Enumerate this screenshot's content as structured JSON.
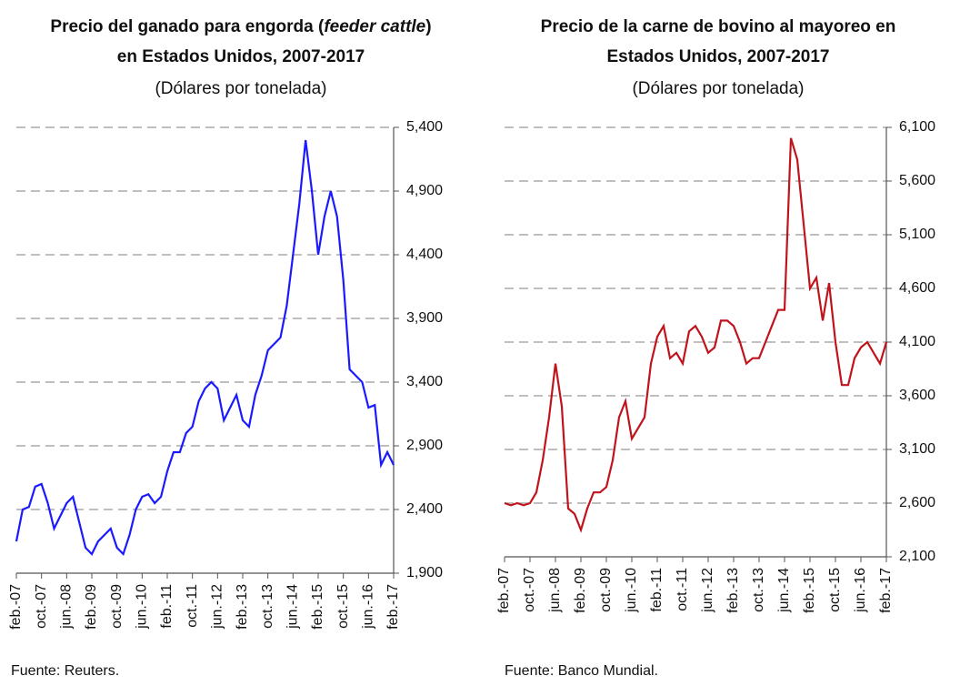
{
  "chart_data": [
    {
      "type": "line",
      "title": [
        [
          {
            "text": "Precio del ganado para engorda (",
            "italic": false
          },
          {
            "text": "feeder cattle",
            "italic": true
          },
          {
            "text": ")",
            "italic": false
          }
        ],
        [
          {
            "text": "en Estados Unidos, 2007-2017",
            "italic": false
          }
        ]
      ],
      "subtitle": "(Dólares por tonelada)",
      "source": "Fuente: Reuters.",
      "categories": [
        "feb.-07",
        null,
        null,
        null,
        "oct.-07",
        null,
        null,
        null,
        "jun.-08",
        null,
        null,
        null,
        "feb.-09",
        null,
        null,
        null,
        "oct.-09",
        null,
        null,
        null,
        "jun.-10",
        null,
        null,
        null,
        "feb.-11",
        null,
        null,
        null,
        "oct.-11",
        null,
        null,
        null,
        "jun.-12",
        null,
        null,
        null,
        "feb.-13",
        null,
        null,
        null,
        "oct.-13",
        null,
        null,
        null,
        "jun.-14",
        null,
        null,
        null,
        "feb.-15",
        null,
        null,
        null,
        "oct.-15",
        null,
        null,
        null,
        "jun.-16",
        null,
        null,
        null,
        "feb.-17"
      ],
      "values": [
        2150,
        2400,
        2420,
        2580,
        2600,
        2450,
        2250,
        2350,
        2450,
        2500,
        2300,
        2100,
        2050,
        2150,
        2200,
        2250,
        2100,
        2050,
        2200,
        2400,
        2500,
        2520,
        2450,
        2500,
        2700,
        2850,
        2850,
        3000,
        3050,
        3250,
        3350,
        3400,
        3350,
        3100,
        3200,
        3300,
        3100,
        3050,
        3300,
        3450,
        3650,
        3700,
        3750,
        4000,
        4400,
        4800,
        5300,
        4900,
        4400,
        4700,
        4900,
        4700,
        4200,
        3500,
        3450,
        3400,
        3200,
        3220,
        2750,
        2850,
        2750
      ],
      "color": "#1a1aff",
      "ylim": [
        1900,
        5400
      ],
      "yticks": [
        {
          "value": 1900,
          "label": "1,900"
        },
        {
          "value": 2400,
          "label": "2,400"
        },
        {
          "value": 2900,
          "label": "2,900"
        },
        {
          "value": 3400,
          "label": "3,400"
        },
        {
          "value": 3900,
          "label": "3,900"
        },
        {
          "value": 4400,
          "label": "4,400"
        },
        {
          "value": 4900,
          "label": "4,900"
        },
        {
          "value": 5400,
          "label": "5,400"
        }
      ],
      "grid": true
    },
    {
      "type": "line",
      "title": [
        [
          {
            "text": "Precio de la carne de bovino al mayoreo en",
            "italic": false
          }
        ],
        [
          {
            "text": "Estados Unidos, 2007-2017",
            "italic": false
          }
        ]
      ],
      "subtitle": "(Dólares por tonelada)",
      "source": "Fuente: Banco Mundial.",
      "categories": [
        "feb.-07",
        null,
        null,
        null,
        "oct.-07",
        null,
        null,
        null,
        "jun.-08",
        null,
        null,
        null,
        "feb.-09",
        null,
        null,
        null,
        "oct.-09",
        null,
        null,
        null,
        "jun.-10",
        null,
        null,
        null,
        "feb.-11",
        null,
        null,
        null,
        "oct.-11",
        null,
        null,
        null,
        "jun.-12",
        null,
        null,
        null,
        "feb.-13",
        null,
        null,
        null,
        "oct.-13",
        null,
        null,
        null,
        "jun.-14",
        null,
        null,
        null,
        "feb.-15",
        null,
        null,
        null,
        "oct.-15",
        null,
        null,
        null,
        "jun.-16",
        null,
        null,
        null,
        "feb.-17"
      ],
      "values": [
        2600,
        2580,
        2600,
        2580,
        2600,
        2700,
        3000,
        3400,
        3900,
        3500,
        2550,
        2500,
        2350,
        2550,
        2700,
        2700,
        2750,
        3000,
        3400,
        3550,
        3200,
        3300,
        3400,
        3900,
        4150,
        4250,
        3950,
        4000,
        3900,
        4200,
        4250,
        4150,
        4000,
        4050,
        4300,
        4300,
        4250,
        4100,
        3900,
        3950,
        3950,
        4100,
        4250,
        4400,
        4400,
        6000,
        5800,
        5200,
        4600,
        4700,
        4300,
        4650,
        4100,
        3700,
        3700,
        3950,
        4050,
        4100,
        4000,
        3900,
        4100
      ],
      "color": "#c0141c",
      "ylim": [
        2100,
        6100
      ],
      "yticks": [
        {
          "value": 2100,
          "label": "2,100"
        },
        {
          "value": 2600,
          "label": "2,600"
        },
        {
          "value": 3100,
          "label": "3,100"
        },
        {
          "value": 3600,
          "label": "3,600"
        },
        {
          "value": 4100,
          "label": "4,100"
        },
        {
          "value": 4600,
          "label": "4,600"
        },
        {
          "value": 5100,
          "label": "5,100"
        },
        {
          "value": 5600,
          "label": "5,600"
        },
        {
          "value": 6100,
          "label": "6,100"
        }
      ],
      "grid": true
    }
  ]
}
